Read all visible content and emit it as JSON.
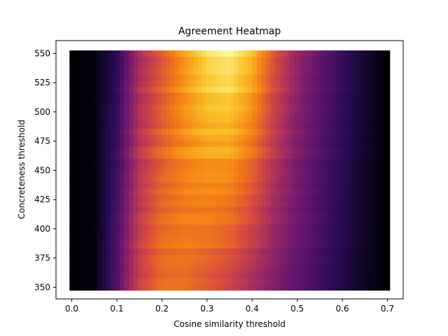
{
  "chart_data": {
    "type": "heatmap",
    "title": "Agreement Heatmap",
    "xlabel": "Cosine similarity threshold",
    "ylabel": "Concreteness threshold",
    "xlim": [
      -0.035,
      0.735
    ],
    "ylim": [
      340,
      561
    ],
    "x_range": [
      0.0,
      0.7
    ],
    "y_range": [
      350,
      550
    ],
    "x_ticks": [
      0.0,
      0.1,
      0.2,
      0.3,
      0.4,
      0.5,
      0.6,
      0.7
    ],
    "x_tick_labels": [
      "0.0",
      "0.1",
      "0.2",
      "0.3",
      "0.4",
      "0.5",
      "0.6",
      "0.7"
    ],
    "y_ticks": [
      350,
      375,
      400,
      425,
      450,
      475,
      500,
      525,
      550
    ],
    "y_tick_labels": [
      "350",
      "375",
      "400",
      "425",
      "450",
      "475",
      "500",
      "525",
      "550"
    ],
    "colormap": "inferno",
    "profile_note": "intensity (0-1) across cosine threshold at low and high concreteness",
    "x_profile": [
      0.0,
      0.05,
      0.1,
      0.15,
      0.2,
      0.25,
      0.3,
      0.35,
      0.4,
      0.45,
      0.5,
      0.55,
      0.6,
      0.65,
      0.7
    ],
    "intensity_low_concreteness": [
      0.0,
      0.02,
      0.25,
      0.55,
      0.68,
      0.68,
      0.62,
      0.55,
      0.45,
      0.35,
      0.27,
      0.2,
      0.12,
      0.05,
      0.0
    ],
    "intensity_high_concreteness": [
      0.0,
      0.02,
      0.15,
      0.45,
      0.62,
      0.78,
      0.92,
      0.97,
      0.85,
      0.6,
      0.4,
      0.28,
      0.18,
      0.08,
      0.0
    ]
  }
}
